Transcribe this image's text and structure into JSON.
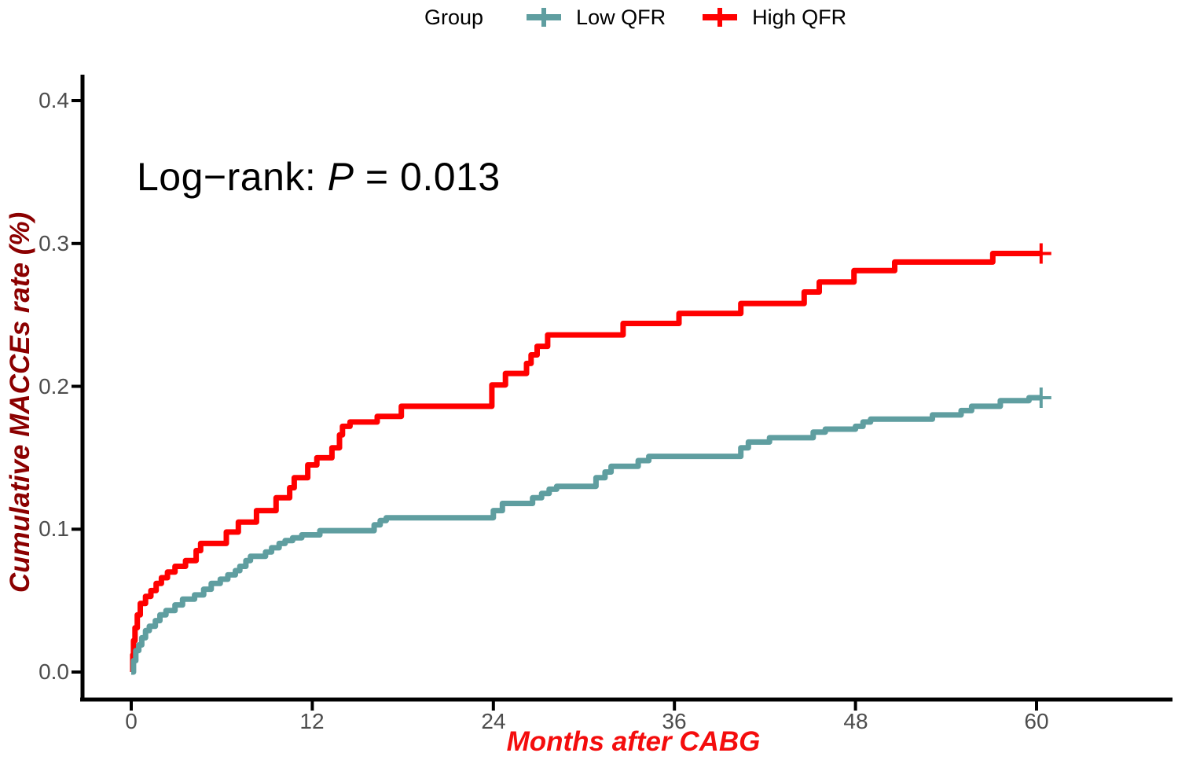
{
  "legend": {
    "title": "Group",
    "items": [
      {
        "label": "Low QFR",
        "color": "#5F9EA0",
        "marker": "plus-censor-mark"
      },
      {
        "label": "High QFR",
        "color": "#FF0000",
        "marker": "plus-censor-mark"
      }
    ]
  },
  "annotation": {
    "prefix": "Log−rank: ",
    "p_symbol": "P",
    "suffix": " = 0.013"
  },
  "axes": {
    "x_label": "Months after CABG",
    "y_label": "Cumulative MACCEs rate (%)",
    "x_label_color": "#F40D0D",
    "y_label_color": "#8B0000",
    "tick_text_color": "#4D4D4D",
    "axis_line_color": "#000000",
    "x_tick_labels": [
      "0",
      "12",
      "24",
      "36",
      "48",
      "60"
    ],
    "y_tick_labels": [
      "0.0",
      "0.1",
      "0.2",
      "0.3",
      "0.4"
    ]
  },
  "chart_data": {
    "type": "line",
    "subtype": "kaplan-meier-cumulative-incidence-step",
    "title": "",
    "xlabel": "Months after CABG",
    "ylabel": "Cumulative MACCEs rate (%)",
    "xlim": [
      0,
      67
    ],
    "ylim": [
      0,
      0.42
    ],
    "x_ticks": [
      0,
      12,
      24,
      36,
      48,
      60
    ],
    "y_ticks": [
      0,
      0.1,
      0.2,
      0.3,
      0.4
    ],
    "grid": false,
    "legend_position": "top",
    "annotation": "Log−rank: P = 0.013",
    "series": [
      {
        "name": "Low QFR",
        "color": "#5F9EA0",
        "censor_end": true,
        "end_time": 60.3,
        "final_value": 0.192,
        "steps": [
          [
            0,
            0
          ],
          [
            0.15,
            0.008
          ],
          [
            0.3,
            0.015
          ],
          [
            0.5,
            0.019
          ],
          [
            0.7,
            0.024
          ],
          [
            0.95,
            0.029
          ],
          [
            1.2,
            0.032
          ],
          [
            1.6,
            0.036
          ],
          [
            1.9,
            0.04
          ],
          [
            2.3,
            0.043
          ],
          [
            2.9,
            0.047
          ],
          [
            3.4,
            0.051
          ],
          [
            4.2,
            0.054
          ],
          [
            4.8,
            0.058
          ],
          [
            5.3,
            0.062
          ],
          [
            5.9,
            0.065
          ],
          [
            6.4,
            0.068
          ],
          [
            6.9,
            0.071
          ],
          [
            7.2,
            0.074
          ],
          [
            7.6,
            0.078
          ],
          [
            7.9,
            0.081
          ],
          [
            8.9,
            0.084
          ],
          [
            9.3,
            0.087
          ],
          [
            9.8,
            0.09
          ],
          [
            10.2,
            0.092
          ],
          [
            10.7,
            0.094
          ],
          [
            11.3,
            0.096
          ],
          [
            12.5,
            0.099
          ],
          [
            16.1,
            0.103
          ],
          [
            16.5,
            0.106
          ],
          [
            16.9,
            0.108
          ],
          [
            24.0,
            0.113
          ],
          [
            24.6,
            0.118
          ],
          [
            26.6,
            0.122
          ],
          [
            27.2,
            0.125
          ],
          [
            27.7,
            0.128
          ],
          [
            28.2,
            0.13
          ],
          [
            30.8,
            0.136
          ],
          [
            31.4,
            0.14
          ],
          [
            31.8,
            0.144
          ],
          [
            33.6,
            0.148
          ],
          [
            34.3,
            0.151
          ],
          [
            40.4,
            0.157
          ],
          [
            40.9,
            0.161
          ],
          [
            42.3,
            0.164
          ],
          [
            45.2,
            0.168
          ],
          [
            46.0,
            0.17
          ],
          [
            48.0,
            0.172
          ],
          [
            48.5,
            0.175
          ],
          [
            49.0,
            0.177
          ],
          [
            53.1,
            0.18
          ],
          [
            55.0,
            0.183
          ],
          [
            55.7,
            0.186
          ],
          [
            57.6,
            0.19
          ],
          [
            59.5,
            0.192
          ]
        ]
      },
      {
        "name": "High QFR",
        "color": "#FF0000",
        "censor_end": true,
        "end_time": 60.3,
        "final_value": 0.293,
        "steps": [
          [
            0,
            0
          ],
          [
            0.1,
            0.012
          ],
          [
            0.15,
            0.022
          ],
          [
            0.25,
            0.031
          ],
          [
            0.4,
            0.04
          ],
          [
            0.6,
            0.048
          ],
          [
            0.95,
            0.053
          ],
          [
            1.3,
            0.057
          ],
          [
            1.65,
            0.062
          ],
          [
            2.0,
            0.066
          ],
          [
            2.4,
            0.07
          ],
          [
            2.9,
            0.074
          ],
          [
            3.6,
            0.078
          ],
          [
            4.3,
            0.085
          ],
          [
            4.6,
            0.09
          ],
          [
            6.3,
            0.098
          ],
          [
            7.1,
            0.105
          ],
          [
            8.3,
            0.113
          ],
          [
            9.6,
            0.122
          ],
          [
            10.5,
            0.129
          ],
          [
            10.8,
            0.136
          ],
          [
            11.7,
            0.145
          ],
          [
            12.3,
            0.15
          ],
          [
            13.3,
            0.157
          ],
          [
            13.8,
            0.166
          ],
          [
            14.0,
            0.172
          ],
          [
            14.5,
            0.175
          ],
          [
            16.3,
            0.179
          ],
          [
            17.9,
            0.186
          ],
          [
            23.9,
            0.201
          ],
          [
            24.8,
            0.209
          ],
          [
            26.2,
            0.216
          ],
          [
            26.5,
            0.222
          ],
          [
            26.9,
            0.228
          ],
          [
            27.6,
            0.236
          ],
          [
            32.6,
            0.244
          ],
          [
            36.3,
            0.251
          ],
          [
            40.4,
            0.258
          ],
          [
            44.6,
            0.266
          ],
          [
            45.6,
            0.273
          ],
          [
            47.9,
            0.281
          ],
          [
            50.6,
            0.287
          ],
          [
            57.1,
            0.293
          ]
        ]
      }
    ]
  }
}
